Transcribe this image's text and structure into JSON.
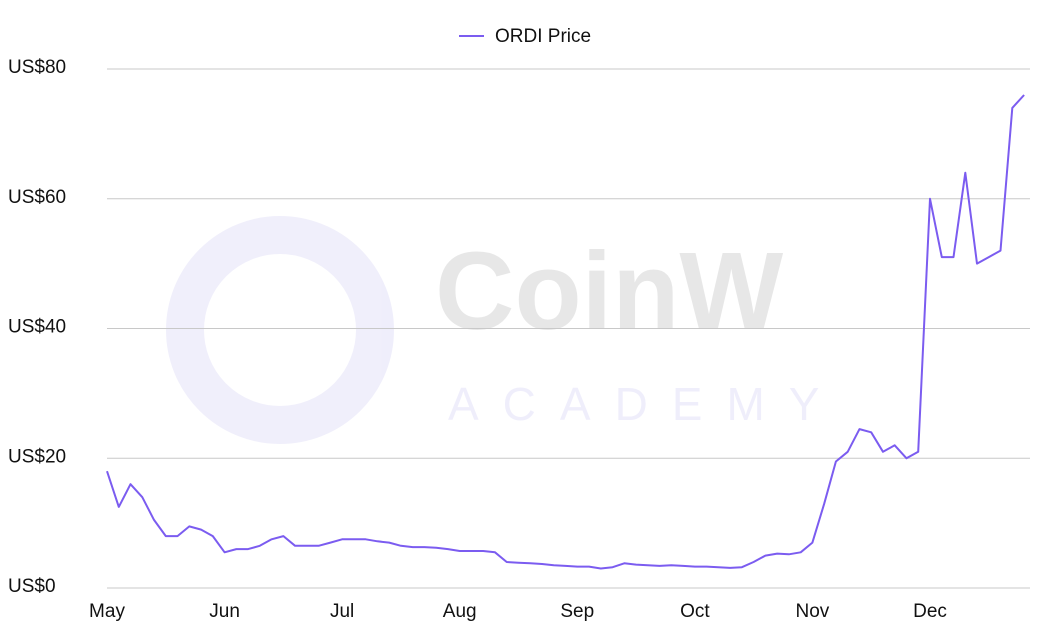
{
  "chart_data": {
    "type": "line",
    "watermark": {
      "brand": "CoinW",
      "sub": "ACADEMY"
    },
    "categories": [
      "May",
      null,
      null,
      null,
      null,
      null,
      null,
      null,
      null,
      null,
      "Jun",
      null,
      null,
      null,
      null,
      null,
      null,
      null,
      null,
      null,
      "Jul",
      null,
      null,
      null,
      null,
      null,
      null,
      null,
      null,
      null,
      "Aug",
      null,
      null,
      null,
      null,
      null,
      null,
      null,
      null,
      null,
      "Sep",
      null,
      null,
      null,
      null,
      null,
      null,
      null,
      null,
      null,
      "Oct",
      null,
      null,
      null,
      null,
      null,
      null,
      null,
      null,
      null,
      "Nov",
      null,
      null,
      null,
      null,
      null,
      null,
      null,
      null,
      null,
      "Dec",
      null,
      null,
      null,
      null,
      null,
      null,
      null,
      null
    ],
    "series": [
      {
        "name": "ORDI Price",
        "color": "#7b5cf0",
        "values": [
          18,
          12.5,
          16,
          14,
          10.5,
          8,
          8,
          9.5,
          9,
          8,
          5.5,
          6,
          6,
          6.5,
          7.5,
          8,
          6.5,
          6.5,
          6.5,
          7,
          7.5,
          7.5,
          7.5,
          7.2,
          7,
          6.5,
          6.3,
          6.3,
          6.2,
          6,
          5.7,
          5.7,
          5.7,
          5.5,
          4,
          3.9,
          3.8,
          3.7,
          3.5,
          3.4,
          3.3,
          3.3,
          3,
          3.2,
          3.8,
          3.6,
          3.5,
          3.4,
          3.5,
          3.4,
          3.3,
          3.3,
          3.2,
          3.1,
          3.2,
          4,
          5,
          5.3,
          5.2,
          5.5,
          7,
          13,
          19.5,
          21,
          24.5,
          24,
          21,
          22,
          20,
          21,
          60,
          51,
          51,
          64,
          50,
          51,
          52,
          74,
          76
        ]
      }
    ],
    "ylim": [
      0,
      80
    ],
    "yticks": [
      {
        "value": 0,
        "label": "US$0"
      },
      {
        "value": 20,
        "label": "US$20"
      },
      {
        "value": 40,
        "label": "US$40"
      },
      {
        "value": 60,
        "label": "US$60"
      },
      {
        "value": 80,
        "label": "US$80"
      }
    ],
    "grid": true,
    "legend": "top"
  }
}
